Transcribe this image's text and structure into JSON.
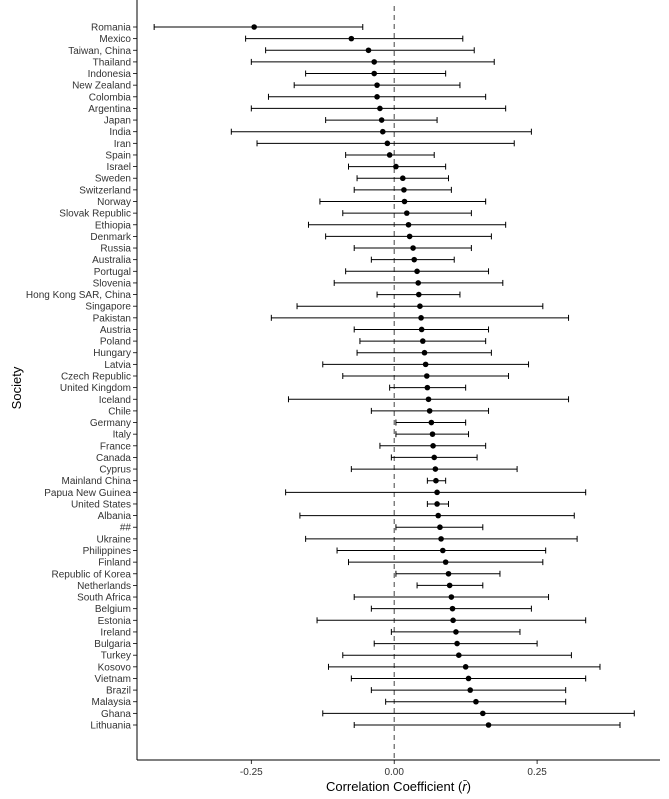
{
  "chart_data": {
    "type": "forest",
    "xlabel_prefix": "Correlation Coefficient (",
    "xlabel_symbol": "r̄",
    "xlabel_suffix": ")",
    "ylabel": "Society",
    "xlim": [
      -0.45,
      0.465
    ],
    "xticks": [
      -0.25,
      0.0,
      0.25
    ],
    "xtick_labels": [
      "-0.25",
      "0.00",
      "0.25"
    ],
    "reference_line": 0.0,
    "colors": {
      "point": "#000000",
      "whisker": "#000000",
      "refline": "#555555",
      "axis": "#000000"
    },
    "societies": [
      {
        "name": "Romania",
        "est": -0.245,
        "lo": -0.42,
        "hi": -0.055
      },
      {
        "name": "Mexico",
        "est": -0.075,
        "lo": -0.26,
        "hi": 0.12
      },
      {
        "name": "Taiwan, China",
        "est": -0.045,
        "lo": -0.225,
        "hi": 0.14
      },
      {
        "name": "Thailand",
        "est": -0.035,
        "lo": -0.25,
        "hi": 0.175
      },
      {
        "name": "Indonesia",
        "est": -0.035,
        "lo": -0.155,
        "hi": 0.09
      },
      {
        "name": "New Zealand",
        "est": -0.03,
        "lo": -0.175,
        "hi": 0.115
      },
      {
        "name": "Colombia",
        "est": -0.03,
        "lo": -0.22,
        "hi": 0.16
      },
      {
        "name": "Argentina",
        "est": -0.025,
        "lo": -0.25,
        "hi": 0.195
      },
      {
        "name": "Japan",
        "est": -0.022,
        "lo": -0.12,
        "hi": 0.075
      },
      {
        "name": "India",
        "est": -0.02,
        "lo": -0.285,
        "hi": 0.24
      },
      {
        "name": "Iran",
        "est": -0.012,
        "lo": -0.24,
        "hi": 0.21
      },
      {
        "name": "Spain",
        "est": -0.008,
        "lo": -0.085,
        "hi": 0.07
      },
      {
        "name": "Israel",
        "est": 0.003,
        "lo": -0.08,
        "hi": 0.09
      },
      {
        "name": "Sweden",
        "est": 0.015,
        "lo": -0.065,
        "hi": 0.095
      },
      {
        "name": "Switzerland",
        "est": 0.017,
        "lo": -0.07,
        "hi": 0.1
      },
      {
        "name": "Norway",
        "est": 0.018,
        "lo": -0.13,
        "hi": 0.16
      },
      {
        "name": "Slovak Republic",
        "est": 0.022,
        "lo": -0.09,
        "hi": 0.135
      },
      {
        "name": "Ethiopia",
        "est": 0.025,
        "lo": -0.15,
        "hi": 0.195
      },
      {
        "name": "Denmark",
        "est": 0.027,
        "lo": -0.12,
        "hi": 0.17
      },
      {
        "name": "Russia",
        "est": 0.033,
        "lo": -0.07,
        "hi": 0.135
      },
      {
        "name": "Australia",
        "est": 0.035,
        "lo": -0.04,
        "hi": 0.105
      },
      {
        "name": "Portugal",
        "est": 0.04,
        "lo": -0.085,
        "hi": 0.165
      },
      {
        "name": "Slovenia",
        "est": 0.042,
        "lo": -0.105,
        "hi": 0.19
      },
      {
        "name": "Hong Kong SAR, China",
        "est": 0.043,
        "lo": -0.03,
        "hi": 0.115
      },
      {
        "name": "Singapore",
        "est": 0.045,
        "lo": -0.17,
        "hi": 0.26
      },
      {
        "name": "Pakistan",
        "est": 0.047,
        "lo": -0.215,
        "hi": 0.305
      },
      {
        "name": "Austria",
        "est": 0.048,
        "lo": -0.07,
        "hi": 0.165
      },
      {
        "name": "Poland",
        "est": 0.05,
        "lo": -0.06,
        "hi": 0.16
      },
      {
        "name": "Hungary",
        "est": 0.053,
        "lo": -0.065,
        "hi": 0.17
      },
      {
        "name": "Latvia",
        "est": 0.055,
        "lo": -0.125,
        "hi": 0.235
      },
      {
        "name": "Czech Republic",
        "est": 0.057,
        "lo": -0.09,
        "hi": 0.2
      },
      {
        "name": "United Kingdom",
        "est": 0.058,
        "lo": -0.008,
        "hi": 0.125
      },
      {
        "name": "Iceland",
        "est": 0.06,
        "lo": -0.185,
        "hi": 0.305
      },
      {
        "name": "Chile",
        "est": 0.062,
        "lo": -0.04,
        "hi": 0.165
      },
      {
        "name": "Germany",
        "est": 0.065,
        "lo": 0.003,
        "hi": 0.125
      },
      {
        "name": "Italy",
        "est": 0.067,
        "lo": 0.003,
        "hi": 0.13
      },
      {
        "name": "France",
        "est": 0.068,
        "lo": -0.025,
        "hi": 0.16
      },
      {
        "name": "Canada",
        "est": 0.07,
        "lo": -0.005,
        "hi": 0.145
      },
      {
        "name": "Cyprus",
        "est": 0.072,
        "lo": -0.075,
        "hi": 0.215
      },
      {
        "name": "Mainland China",
        "est": 0.073,
        "lo": 0.058,
        "hi": 0.09
      },
      {
        "name": "Papua New Guinea",
        "est": 0.075,
        "lo": -0.19,
        "hi": 0.335
      },
      {
        "name": "United States",
        "est": 0.075,
        "lo": 0.058,
        "hi": 0.095
      },
      {
        "name": "Albania",
        "est": 0.077,
        "lo": -0.165,
        "hi": 0.315
      },
      {
        "name": "##",
        "est": 0.08,
        "lo": 0.003,
        "hi": 0.155
      },
      {
        "name": "Ukraine",
        "est": 0.082,
        "lo": -0.155,
        "hi": 0.32
      },
      {
        "name": "Philippines",
        "est": 0.085,
        "lo": -0.1,
        "hi": 0.265
      },
      {
        "name": "Finland",
        "est": 0.09,
        "lo": -0.08,
        "hi": 0.26
      },
      {
        "name": "Republic of Korea",
        "est": 0.095,
        "lo": 0.003,
        "hi": 0.185
      },
      {
        "name": "Netherlands",
        "est": 0.097,
        "lo": 0.04,
        "hi": 0.155
      },
      {
        "name": "South Africa",
        "est": 0.1,
        "lo": -0.07,
        "hi": 0.27
      },
      {
        "name": "Belgium",
        "est": 0.102,
        "lo": -0.04,
        "hi": 0.24
      },
      {
        "name": "Estonia",
        "est": 0.103,
        "lo": -0.135,
        "hi": 0.335
      },
      {
        "name": "Ireland",
        "est": 0.108,
        "lo": -0.005,
        "hi": 0.22
      },
      {
        "name": "Bulgaria",
        "est": 0.11,
        "lo": -0.035,
        "hi": 0.25
      },
      {
        "name": "Turkey",
        "est": 0.113,
        "lo": -0.09,
        "hi": 0.31
      },
      {
        "name": "Kosovo",
        "est": 0.125,
        "lo": -0.115,
        "hi": 0.36
      },
      {
        "name": "Vietnam",
        "est": 0.13,
        "lo": -0.075,
        "hi": 0.335
      },
      {
        "name": "Brazil",
        "est": 0.133,
        "lo": -0.04,
        "hi": 0.3
      },
      {
        "name": "Malaysia",
        "est": 0.143,
        "lo": -0.015,
        "hi": 0.3
      },
      {
        "name": "Ghana",
        "est": 0.155,
        "lo": -0.125,
        "hi": 0.42
      },
      {
        "name": "Lithuania",
        "est": 0.165,
        "lo": -0.07,
        "hi": 0.395
      }
    ]
  }
}
